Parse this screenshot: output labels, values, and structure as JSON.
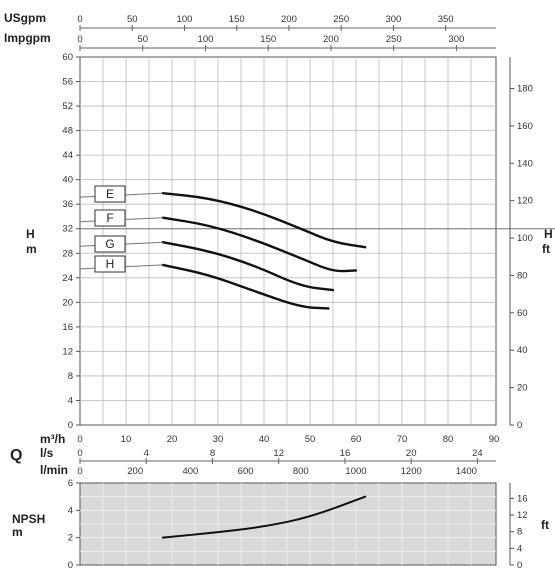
{
  "chart_data": [
    {
      "type": "line",
      "title": "",
      "top_unit_scales": [
        {
          "unit": "USgpm",
          "ticks": [
            "0",
            "50",
            "100",
            "150",
            "200",
            "250",
            "300",
            "350"
          ],
          "values": [
            0,
            50,
            100,
            150,
            200,
            250,
            300,
            350
          ]
        },
        {
          "unit": "Impgpm",
          "ticks": [
            "0",
            "50",
            "100",
            "150",
            "200",
            "250",
            "300"
          ],
          "values": [
            0,
            50,
            100,
            150,
            200,
            250,
            300
          ]
        }
      ],
      "ylabel_left": {
        "line1": "H",
        "line2": "m"
      },
      "ylabel_right": {
        "line1": "H",
        "line2": "ft"
      },
      "ylim_m": [
        0,
        60
      ],
      "yticks_m": [
        "0",
        "4",
        "8",
        "12",
        "16",
        "20",
        "24",
        "28",
        "32",
        "36",
        "40",
        "44",
        "48",
        "52",
        "56",
        "60"
      ],
      "yticks_ft": [
        "0",
        "20",
        "40",
        "60",
        "80",
        "100",
        "120",
        "140",
        "160",
        "180"
      ],
      "grid": true,
      "reference_line_m": 32,
      "series": [
        {
          "name": "E",
          "x_m3h": [
            18,
            28,
            38,
            48,
            55,
            62
          ],
          "y_m": [
            37.8,
            37.0,
            35.0,
            32.0,
            29.8,
            29.0
          ]
        },
        {
          "name": "F",
          "x_m3h": [
            18,
            28,
            38,
            48,
            55,
            60
          ],
          "y_m": [
            33.8,
            32.6,
            30.2,
            27.2,
            25.0,
            25.2
          ]
        },
        {
          "name": "G",
          "x_m3h": [
            18,
            28,
            38,
            48,
            55
          ],
          "y_m": [
            29.8,
            28.4,
            26.0,
            22.6,
            22.0
          ]
        },
        {
          "name": "H",
          "x_m3h": [
            18,
            28,
            38,
            48,
            54
          ],
          "y_m": [
            26.1,
            24.5,
            21.8,
            19.2,
            19.0
          ]
        }
      ]
    },
    {
      "type": "axis_scales",
      "q_label": "Q",
      "scales": [
        {
          "unit": "m³/h",
          "ticks": [
            "0",
            "10",
            "20",
            "30",
            "40",
            "50",
            "60",
            "70",
            "80",
            "90"
          ]
        },
        {
          "unit": "l/s",
          "ticks": [
            "0",
            "4",
            "8",
            "12",
            "16",
            "20",
            "24"
          ]
        },
        {
          "unit": "l/min",
          "ticks": [
            "0",
            "200",
            "400",
            "600",
            "800",
            "1000",
            "1200",
            "1400"
          ]
        }
      ]
    },
    {
      "type": "line",
      "title": "",
      "ylabel_left": {
        "line1": "NPSH",
        "line2": "m"
      },
      "ylabel_right": "ft",
      "ylim_m": [
        0,
        6
      ],
      "yticks_m": [
        "0",
        "2",
        "4",
        "6"
      ],
      "yticks_ft": [
        "0",
        "4",
        "8",
        "12",
        "16"
      ],
      "grid": true,
      "series": [
        {
          "name": "NPSH",
          "x_m3h": [
            18,
            30,
            40,
            50,
            62
          ],
          "y_m": [
            2.0,
            2.4,
            2.8,
            3.5,
            5.0
          ]
        }
      ]
    }
  ]
}
